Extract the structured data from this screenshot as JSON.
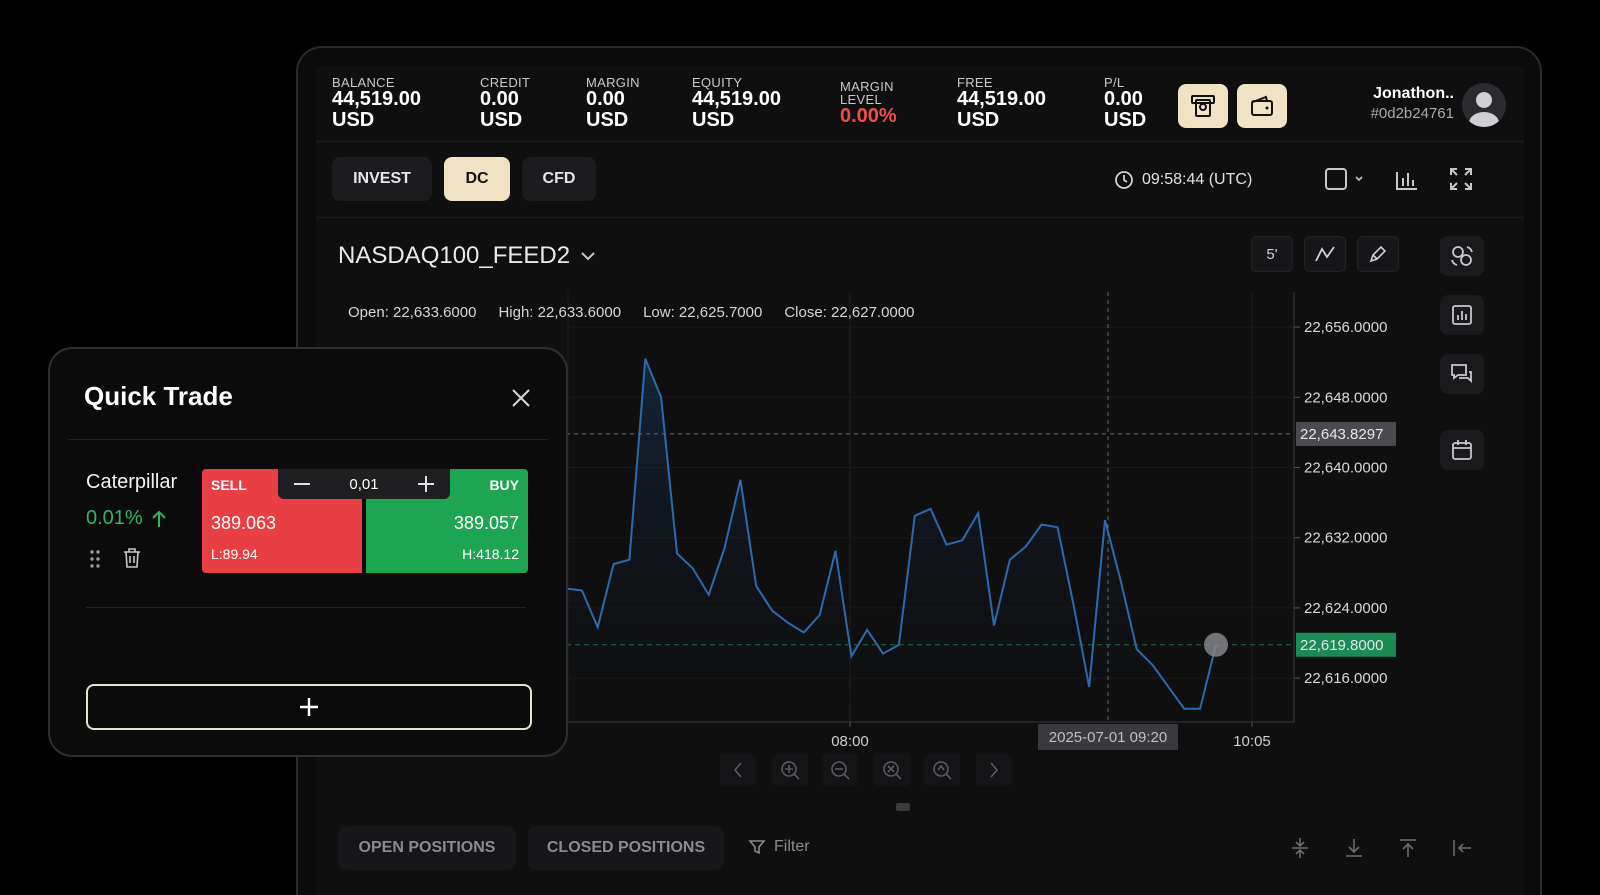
{
  "header": {
    "balance": {
      "label": "BALANCE",
      "value": "44,519.00",
      "unit": "USD"
    },
    "credit": {
      "label": "CREDIT",
      "value": "0.00",
      "unit": "USD"
    },
    "margin": {
      "label": "MARGIN",
      "value": "0.00",
      "unit": "USD"
    },
    "equity": {
      "label": "EQUITY",
      "value": "44,519.00",
      "unit": "USD"
    },
    "margin_level": {
      "label1": "MARGIN",
      "label2": "LEVEL",
      "value": "0.00%"
    },
    "free": {
      "label": "FREE",
      "value": "44,519.00",
      "unit": "USD"
    },
    "pl": {
      "label": "P/L",
      "value": "0.00",
      "unit": "USD"
    },
    "user": {
      "name": "Jonathon..",
      "id": "#0d2b24761"
    }
  },
  "tabs": [
    "INVEST",
    "DC",
    "CFD"
  ],
  "active_tab": "DC",
  "clock": "09:58:44 (UTC)",
  "symbol": "NASDAQ100_FEED2",
  "timeframe": "5'",
  "ohlc": {
    "open": "Open: 22,633.6000",
    "high": "High: 22,633.6000",
    "low": "Low: 22,625.7000",
    "close": "Close: 22,627.0000"
  },
  "chart_data": {
    "type": "area",
    "y_ticks": [
      "22,656.0000",
      "22,648.0000",
      "22,640.0000",
      "22,632.0000",
      "22,624.0000",
      "22,616.0000"
    ],
    "x_ticks": [
      "08:00",
      "10:05"
    ],
    "crosshair_price": "22,643.8297",
    "current_price": "22,619.8000",
    "crosshair_time": "2025-07-01 09:20",
    "ylim": [
      22611,
      22660
    ],
    "series": [
      {
        "values": [
          22626.2,
          22626,
          22621.8,
          22629,
          22629.5,
          22652.4,
          22648,
          22630.2,
          22628.5,
          22625.5,
          22630.8,
          22638.6,
          22626.5,
          22623.7,
          22622.3,
          22621.2,
          22623.2,
          22630.5,
          22618.5,
          22621.5,
          22618.8,
          22619.8,
          22634.5,
          22635.3,
          22631.2,
          22631.7,
          22634.8,
          22622,
          22629.5,
          22631,
          22633.5,
          22633.2,
          22624.5,
          22615,
          22634,
          22627,
          22619.3,
          22617.5,
          22615,
          22612.5,
          22612.5,
          22619.8
        ]
      }
    ],
    "grid": true
  },
  "bottom": {
    "open_positions": "OPEN POSITIONS",
    "closed_positions": "CLOSED POSITIONS",
    "filter": "Filter"
  },
  "quick_trade": {
    "title": "Quick Trade",
    "instrument": "Caterpillar",
    "change": "0.01%",
    "sell_label": "SELL",
    "buy_label": "BUY",
    "quantity": "0,01",
    "sell_price": "389.063",
    "buy_price": "389.057",
    "low": "L:89.94",
    "high": "H:418.12"
  },
  "colors": {
    "accent": "#efe3c4",
    "sell": "#e83f45",
    "buy": "#1ea552",
    "line": "#2a6bb0"
  }
}
